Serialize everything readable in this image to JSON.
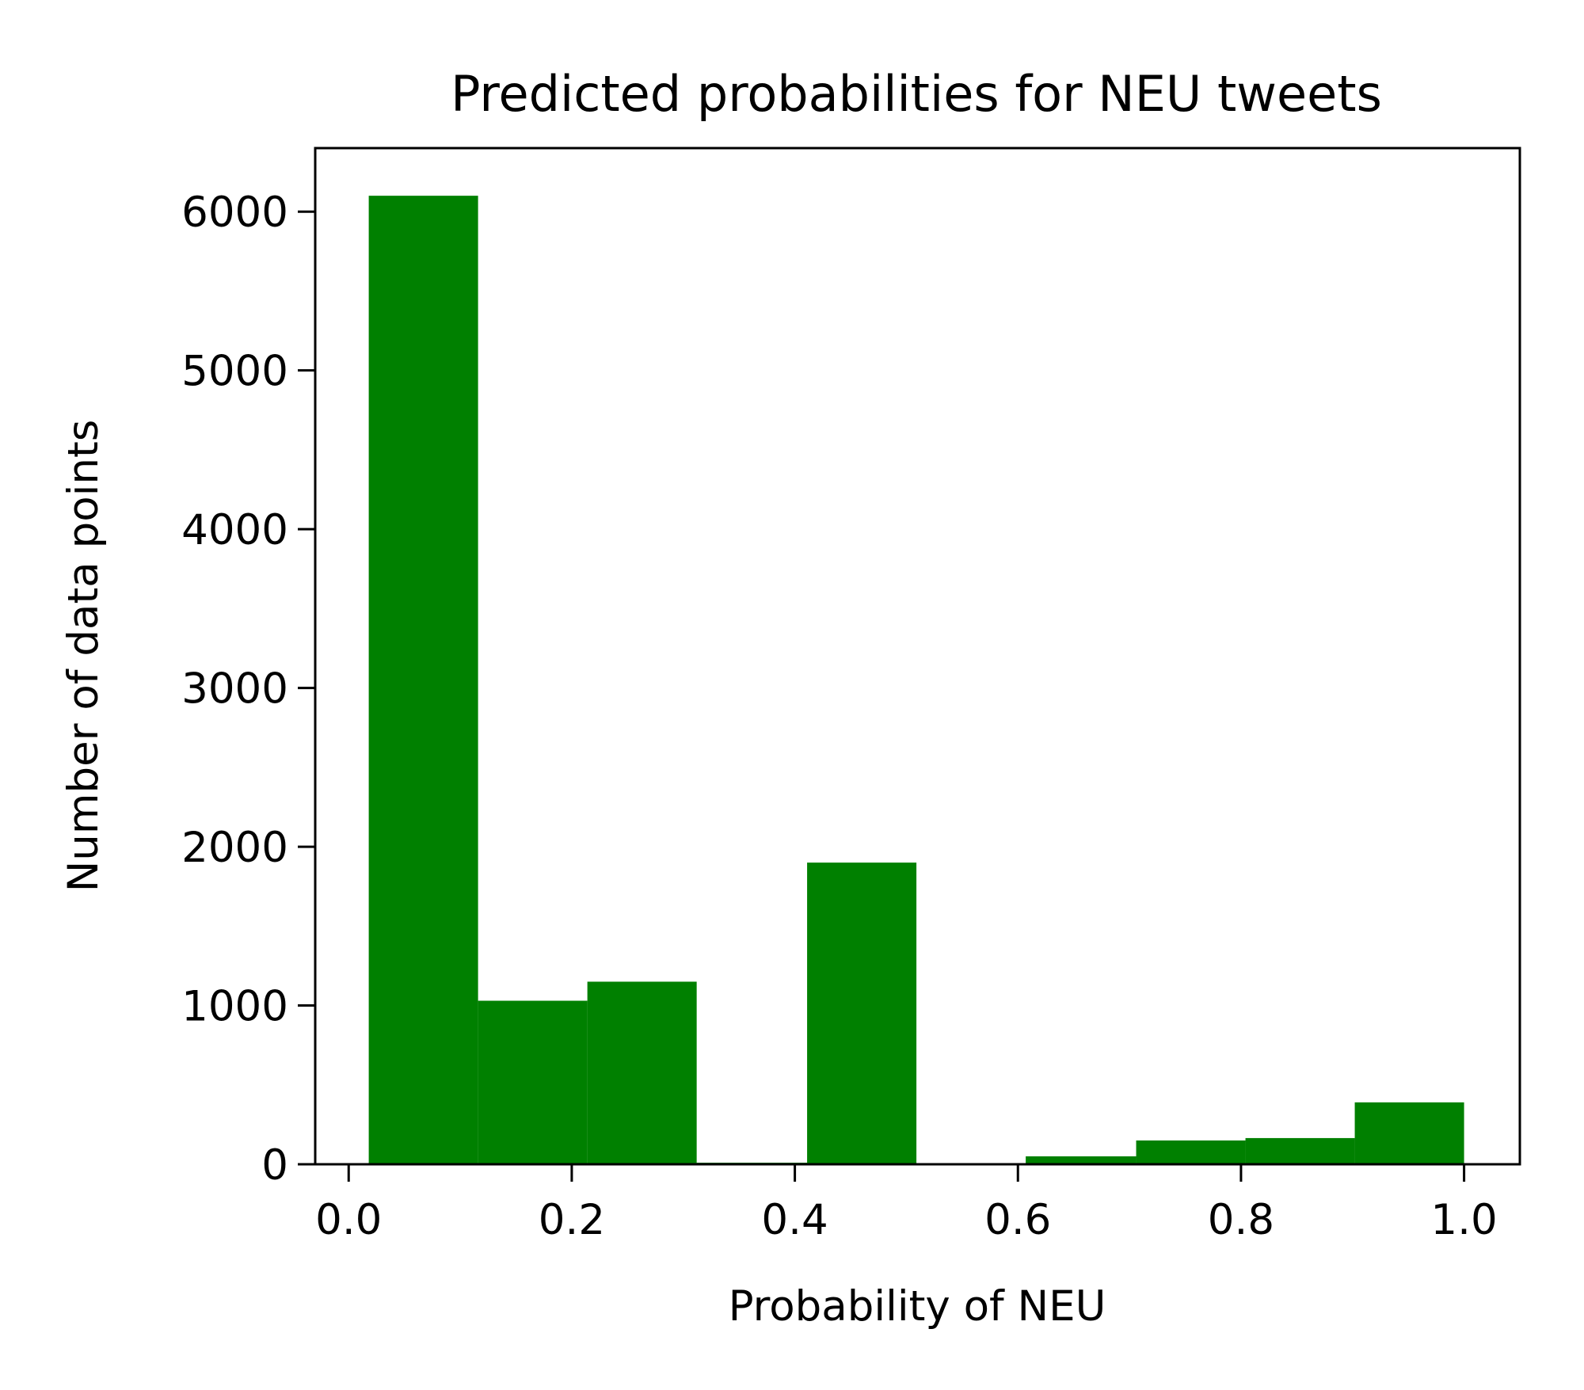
{
  "chart_data": {
    "type": "bar",
    "title": "Predicted probabilities for NEU tweets",
    "xlabel": "Probability of NEU",
    "ylabel": "Number of data points",
    "xlim": [
      -0.03,
      1.05
    ],
    "ylim": [
      0,
      6400
    ],
    "x_ticks": [
      {
        "value": 0.0,
        "label": "0.0"
      },
      {
        "value": 0.2,
        "label": "0.2"
      },
      {
        "value": 0.4,
        "label": "0.4"
      },
      {
        "value": 0.6,
        "label": "0.6"
      },
      {
        "value": 0.8,
        "label": "0.8"
      },
      {
        "value": 1.0,
        "label": "1.0"
      }
    ],
    "y_ticks": [
      {
        "value": 0,
        "label": "0"
      },
      {
        "value": 1000,
        "label": "1000"
      },
      {
        "value": 2000,
        "label": "2000"
      },
      {
        "value": 3000,
        "label": "3000"
      },
      {
        "value": 4000,
        "label": "4000"
      },
      {
        "value": 5000,
        "label": "5000"
      },
      {
        "value": 6000,
        "label": "6000"
      }
    ],
    "bins": [
      {
        "start": 0.018,
        "end": 0.116,
        "value": 6100
      },
      {
        "start": 0.116,
        "end": 0.214,
        "value": 1030
      },
      {
        "start": 0.214,
        "end": 0.312,
        "value": 1150
      },
      {
        "start": 0.312,
        "end": 0.411,
        "value": 10
      },
      {
        "start": 0.411,
        "end": 0.509,
        "value": 1900
      },
      {
        "start": 0.509,
        "end": 0.607,
        "value": 0
      },
      {
        "start": 0.607,
        "end": 0.706,
        "value": 50
      },
      {
        "start": 0.706,
        "end": 0.804,
        "value": 150
      },
      {
        "start": 0.804,
        "end": 0.902,
        "value": 165
      },
      {
        "start": 0.902,
        "end": 1.0,
        "value": 390
      }
    ],
    "bar_color": "#008000",
    "grid": false,
    "legend": "none"
  }
}
